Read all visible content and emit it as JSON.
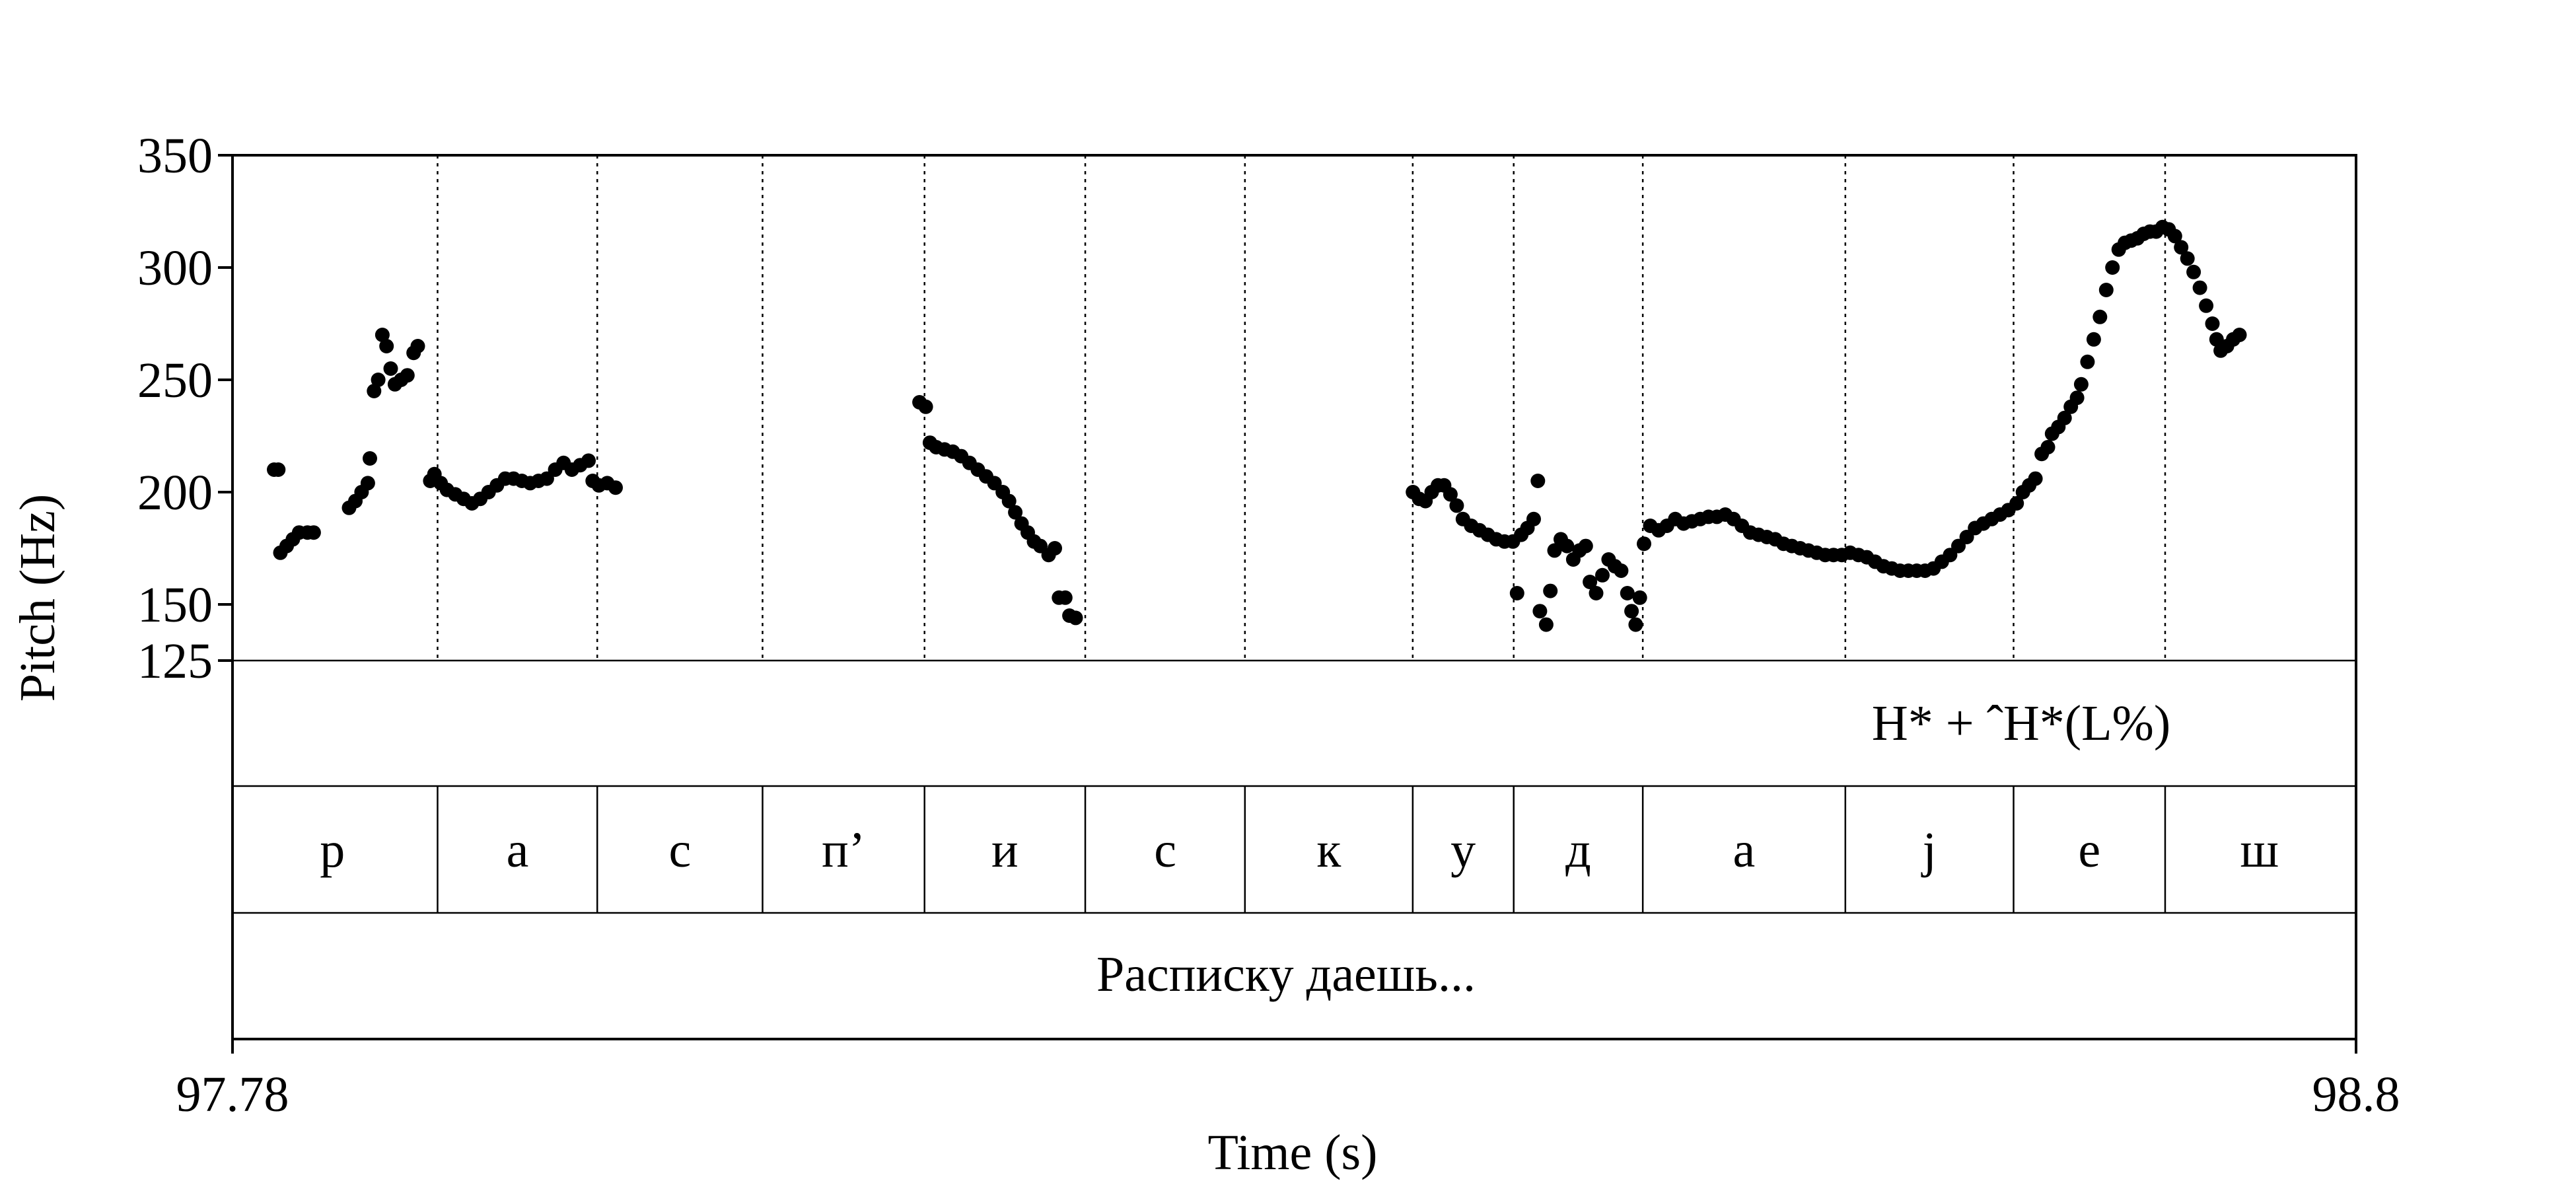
{
  "chart_data": {
    "type": "scatter",
    "xlabel": "Time (s)",
    "ylabel": "Pitch (Hz)",
    "xlim": [
      97.78,
      98.8
    ],
    "ylim": [
      125,
      350
    ],
    "x_ticks": [
      "97.78",
      "98.8"
    ],
    "y_ticks": [
      {
        "value": 350,
        "label": "350"
      },
      {
        "value": 300,
        "label": "300"
      },
      {
        "value": 250,
        "label": "250"
      },
      {
        "value": 200,
        "label": "200"
      },
      {
        "value": 150,
        "label": "150"
      },
      {
        "value": 125,
        "label": "125"
      }
    ],
    "tone_label": "H* + ˆH*(L%)",
    "segment_boundaries": [
      97.8785,
      97.9552,
      98.0346,
      98.1124,
      98.1896,
      98.2663,
      98.3469,
      98.3954,
      98.4574,
      98.5547,
      98.6355,
      98.7083
    ],
    "segments": [
      {
        "label": "р",
        "x": 97.828
      },
      {
        "label": "а",
        "x": 97.9169
      },
      {
        "label": "с",
        "x": 97.9949
      },
      {
        "label": "п’",
        "x": 98.0735
      },
      {
        "label": "и",
        "x": 98.151
      },
      {
        "label": "с",
        "x": 98.228
      },
      {
        "label": "к",
        "x": 98.3066
      },
      {
        "label": "у",
        "x": 98.3711
      },
      {
        "label": "д",
        "x": 98.4264
      },
      {
        "label": "а",
        "x": 98.506
      },
      {
        "label": "j",
        "x": 98.5951
      },
      {
        "label": "е",
        "x": 98.6719
      },
      {
        "label": "ш",
        "x": 98.7536
      }
    ],
    "sentence": "Расписку даешь...",
    "pitch": [
      [
        97.8,
        210
      ],
      [
        97.802,
        210
      ],
      [
        97.803,
        173
      ],
      [
        97.806,
        176
      ],
      [
        97.809,
        179
      ],
      [
        97.812,
        182
      ],
      [
        97.816,
        182
      ],
      [
        97.819,
        182
      ],
      [
        97.836,
        193
      ],
      [
        97.839,
        196
      ],
      [
        97.842,
        200
      ],
      [
        97.845,
        204
      ],
      [
        97.846,
        215
      ],
      [
        97.848,
        245
      ],
      [
        97.85,
        250
      ],
      [
        97.852,
        270
      ],
      [
        97.854,
        265
      ],
      [
        97.856,
        255
      ],
      [
        97.858,
        248
      ],
      [
        97.861,
        250
      ],
      [
        97.864,
        252
      ],
      [
        97.867,
        262
      ],
      [
        97.869,
        265
      ],
      [
        97.875,
        205
      ],
      [
        97.877,
        208
      ],
      [
        97.88,
        204
      ],
      [
        97.883,
        201
      ],
      [
        97.887,
        199
      ],
      [
        97.891,
        197
      ],
      [
        97.895,
        195
      ],
      [
        97.899,
        197
      ],
      [
        97.903,
        200
      ],
      [
        97.907,
        203
      ],
      [
        97.911,
        206
      ],
      [
        97.915,
        206
      ],
      [
        97.919,
        205
      ],
      [
        97.923,
        204
      ],
      [
        97.927,
        205
      ],
      [
        97.931,
        206
      ],
      [
        97.935,
        210
      ],
      [
        97.939,
        213
      ],
      [
        97.943,
        210
      ],
      [
        97.947,
        212
      ],
      [
        97.951,
        214
      ],
      [
        97.953,
        205
      ],
      [
        97.956,
        203
      ],
      [
        97.96,
        204
      ],
      [
        97.964,
        202
      ],
      [
        98.11,
        240
      ],
      [
        98.113,
        238
      ],
      [
        98.115,
        222
      ],
      [
        98.118,
        220
      ],
      [
        98.122,
        219
      ],
      [
        98.126,
        218
      ],
      [
        98.13,
        216
      ],
      [
        98.134,
        213
      ],
      [
        98.138,
        210
      ],
      [
        98.142,
        207
      ],
      [
        98.146,
        204
      ],
      [
        98.15,
        200
      ],
      [
        98.153,
        196
      ],
      [
        98.156,
        191
      ],
      [
        98.159,
        186
      ],
      [
        98.162,
        182
      ],
      [
        98.165,
        178
      ],
      [
        98.168,
        176
      ],
      [
        98.172,
        172
      ],
      [
        98.175,
        175
      ],
      [
        98.177,
        153
      ],
      [
        98.18,
        153
      ],
      [
        98.182,
        145
      ],
      [
        98.185,
        144
      ],
      [
        98.347,
        200
      ],
      [
        98.35,
        197
      ],
      [
        98.353,
        196
      ],
      [
        98.356,
        200
      ],
      [
        98.359,
        203
      ],
      [
        98.362,
        203
      ],
      [
        98.365,
        199
      ],
      [
        98.368,
        194
      ],
      [
        98.371,
        188
      ],
      [
        98.375,
        185
      ],
      [
        98.379,
        183
      ],
      [
        98.383,
        181
      ],
      [
        98.387,
        179
      ],
      [
        98.391,
        178
      ],
      [
        98.395,
        178
      ],
      [
        98.397,
        155
      ],
      [
        98.399,
        181
      ],
      [
        98.402,
        184
      ],
      [
        98.405,
        188
      ],
      [
        98.407,
        205
      ],
      [
        98.408,
        147
      ],
      [
        98.411,
        141
      ],
      [
        98.413,
        156
      ],
      [
        98.415,
        174
      ],
      [
        98.418,
        179
      ],
      [
        98.421,
        176
      ],
      [
        98.424,
        170
      ],
      [
        98.427,
        174
      ],
      [
        98.43,
        176
      ],
      [
        98.432,
        160
      ],
      [
        98.435,
        155
      ],
      [
        98.438,
        163
      ],
      [
        98.441,
        170
      ],
      [
        98.444,
        167
      ],
      [
        98.447,
        165
      ],
      [
        98.45,
        155
      ],
      [
        98.452,
        147
      ],
      [
        98.454,
        141
      ],
      [
        98.456,
        153
      ],
      [
        98.458,
        177
      ],
      [
        98.461,
        185
      ],
      [
        98.465,
        183
      ],
      [
        98.469,
        185
      ],
      [
        98.473,
        188
      ],
      [
        98.477,
        186
      ],
      [
        98.481,
        187
      ],
      [
        98.485,
        188
      ],
      [
        98.489,
        189
      ],
      [
        98.493,
        189
      ],
      [
        98.497,
        190
      ],
      [
        98.501,
        188
      ],
      [
        98.505,
        185
      ],
      [
        98.509,
        182
      ],
      [
        98.513,
        181
      ],
      [
        98.517,
        180
      ],
      [
        98.521,
        179
      ],
      [
        98.525,
        177
      ],
      [
        98.529,
        176
      ],
      [
        98.533,
        175
      ],
      [
        98.537,
        174
      ],
      [
        98.541,
        173
      ],
      [
        98.545,
        172
      ],
      [
        98.549,
        172
      ],
      [
        98.553,
        172
      ],
      [
        98.557,
        173
      ],
      [
        98.561,
        172
      ],
      [
        98.565,
        171
      ],
      [
        98.569,
        169
      ],
      [
        98.573,
        167
      ],
      [
        98.577,
        166
      ],
      [
        98.581,
        165
      ],
      [
        98.585,
        165
      ],
      [
        98.589,
        165
      ],
      [
        98.593,
        165
      ],
      [
        98.597,
        166
      ],
      [
        98.601,
        169
      ],
      [
        98.605,
        172
      ],
      [
        98.609,
        176
      ],
      [
        98.613,
        180
      ],
      [
        98.617,
        184
      ],
      [
        98.621,
        186
      ],
      [
        98.625,
        188
      ],
      [
        98.629,
        190
      ],
      [
        98.633,
        192
      ],
      [
        98.637,
        195
      ],
      [
        98.64,
        200
      ],
      [
        98.643,
        203
      ],
      [
        98.646,
        206
      ],
      [
        98.649,
        217
      ],
      [
        98.652,
        220
      ],
      [
        98.654,
        226
      ],
      [
        98.657,
        229
      ],
      [
        98.66,
        233
      ],
      [
        98.663,
        238
      ],
      [
        98.666,
        242
      ],
      [
        98.668,
        248
      ],
      [
        98.671,
        258
      ],
      [
        98.674,
        268
      ],
      [
        98.677,
        278
      ],
      [
        98.68,
        290
      ],
      [
        98.683,
        300
      ],
      [
        98.686,
        308
      ],
      [
        98.689,
        311
      ],
      [
        98.692,
        312
      ],
      [
        98.695,
        313
      ],
      [
        98.698,
        315
      ],
      [
        98.701,
        316
      ],
      [
        98.704,
        316
      ],
      [
        98.707,
        318
      ],
      [
        98.71,
        317
      ],
      [
        98.713,
        314
      ],
      [
        98.716,
        309
      ],
      [
        98.719,
        304
      ],
      [
        98.722,
        298
      ],
      [
        98.725,
        291
      ],
      [
        98.728,
        283
      ],
      [
        98.731,
        275
      ],
      [
        98.733,
        268
      ],
      [
        98.735,
        263
      ],
      [
        98.738,
        265
      ],
      [
        98.741,
        268
      ],
      [
        98.744,
        270
      ]
    ]
  }
}
